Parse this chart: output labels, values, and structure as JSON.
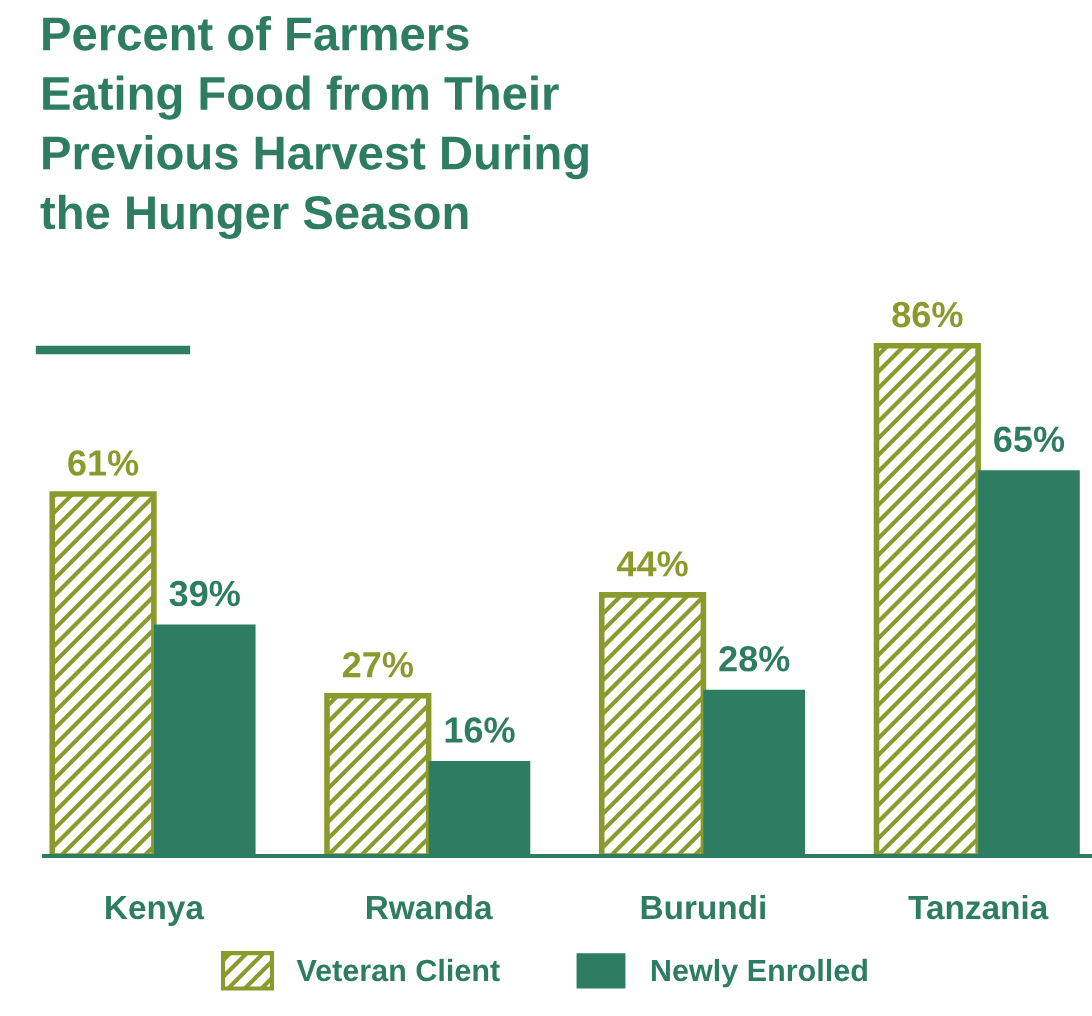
{
  "chart_data": {
    "type": "bar",
    "title": "Percent of Farmers\nEating Food from Their\nPrevious Harvest During\nthe Hunger Season",
    "categories": [
      "Kenya",
      "Rwanda",
      "Burundi",
      "Tanzania"
    ],
    "series": [
      {
        "name": "Veteran Client",
        "color": "#8b9a2c",
        "values": [
          61,
          27,
          44,
          86
        ],
        "value_labels": [
          "61%",
          "27%",
          "44%",
          "86%"
        ]
      },
      {
        "name": "Newly Enrolled",
        "color": "#2e7d62",
        "values": [
          39,
          16,
          28,
          65
        ],
        "value_labels": [
          "39%",
          "16%",
          "28%",
          "65%"
        ]
      }
    ],
    "legend": "bottom",
    "grid": false
  }
}
